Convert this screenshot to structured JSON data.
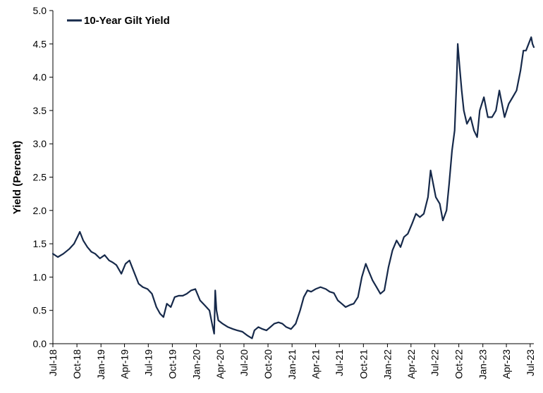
{
  "chart_data": {
    "type": "line",
    "title": "",
    "xlabel": "",
    "ylabel": "Yield (Percent)",
    "ylim": [
      0.0,
      5.0
    ],
    "yticks": [
      "0.0",
      "0.5",
      "1.0",
      "1.5",
      "2.0",
      "2.5",
      "3.0",
      "3.5",
      "4.0",
      "4.5",
      "5.0"
    ],
    "xticks": [
      "Jul-18",
      "Oct-18",
      "Jan-19",
      "Apr-19",
      "Jul-19",
      "Oct-19",
      "Jan-20",
      "Apr-20",
      "Jul-20",
      "Oct-20",
      "Jan-21",
      "Apr-21",
      "Jul-21",
      "Oct-21",
      "Jan-22",
      "Apr-22",
      "Jul-22",
      "Oct-22",
      "Jan-23",
      "Apr-23",
      "Jul-23"
    ],
    "xlim": [
      "2018-07-01",
      "2023-07-15"
    ],
    "grid": false,
    "legend": "top-left",
    "color": "#16294a",
    "series": [
      {
        "name": "10-Year Gilt Yield",
        "x": [
          "2018-07-01",
          "2018-07-20",
          "2018-08-10",
          "2018-09-01",
          "2018-09-20",
          "2018-10-05",
          "2018-10-12",
          "2018-10-25",
          "2018-11-10",
          "2018-11-25",
          "2018-12-10",
          "2018-12-28",
          "2019-01-15",
          "2019-02-01",
          "2019-02-15",
          "2019-03-01",
          "2019-03-20",
          "2019-04-05",
          "2019-04-20",
          "2019-05-10",
          "2019-05-25",
          "2019-06-10",
          "2019-06-28",
          "2019-07-15",
          "2019-08-01",
          "2019-08-15",
          "2019-08-28",
          "2019-09-10",
          "2019-09-25",
          "2019-10-10",
          "2019-10-25",
          "2019-11-10",
          "2019-11-25",
          "2019-12-12",
          "2019-12-28",
          "2020-01-15",
          "2020-02-01",
          "2020-02-20",
          "2020-03-01",
          "2020-03-09",
          "2020-03-13",
          "2020-03-18",
          "2020-03-25",
          "2020-04-10",
          "2020-05-01",
          "2020-05-20",
          "2020-06-05",
          "2020-06-25",
          "2020-07-15",
          "2020-08-01",
          "2020-08-10",
          "2020-08-25",
          "2020-09-10",
          "2020-09-25",
          "2020-10-10",
          "2020-10-25",
          "2020-11-10",
          "2020-11-25",
          "2020-12-10",
          "2020-12-28",
          "2021-01-15",
          "2021-02-01",
          "2021-02-15",
          "2021-03-01",
          "2021-03-15",
          "2021-04-01",
          "2021-04-20",
          "2021-05-10",
          "2021-05-25",
          "2021-06-10",
          "2021-06-25",
          "2021-07-10",
          "2021-07-25",
          "2021-08-10",
          "2021-08-25",
          "2021-09-10",
          "2021-09-25",
          "2021-10-10",
          "2021-10-20",
          "2021-11-05",
          "2021-11-20",
          "2021-12-05",
          "2021-12-20",
          "2022-01-05",
          "2022-01-20",
          "2022-02-05",
          "2022-02-20",
          "2022-03-05",
          "2022-03-20",
          "2022-04-05",
          "2022-04-20",
          "2022-05-05",
          "2022-05-20",
          "2022-06-05",
          "2022-06-15",
          "2022-06-25",
          "2022-07-05",
          "2022-07-20",
          "2022-08-01",
          "2022-08-15",
          "2022-08-25",
          "2022-09-05",
          "2022-09-15",
          "2022-09-23",
          "2022-09-27",
          "2022-10-03",
          "2022-10-12",
          "2022-10-20",
          "2022-11-01",
          "2022-11-15",
          "2022-11-28",
          "2022-12-10",
          "2022-12-20",
          "2023-01-05",
          "2023-01-20",
          "2023-02-05",
          "2023-02-20",
          "2023-03-05",
          "2023-03-15",
          "2023-03-25",
          "2023-04-10",
          "2023-04-25",
          "2023-05-10",
          "2023-05-25",
          "2023-06-05",
          "2023-06-15",
          "2023-06-25",
          "2023-07-05",
          "2023-07-10",
          "2023-07-15"
        ],
        "y": [
          1.35,
          1.3,
          1.35,
          1.42,
          1.5,
          1.62,
          1.68,
          1.55,
          1.45,
          1.38,
          1.35,
          1.28,
          1.33,
          1.25,
          1.22,
          1.18,
          1.05,
          1.2,
          1.25,
          1.05,
          0.9,
          0.85,
          0.82,
          0.75,
          0.55,
          0.45,
          0.4,
          0.6,
          0.55,
          0.7,
          0.72,
          0.72,
          0.75,
          0.8,
          0.82,
          0.65,
          0.58,
          0.5,
          0.3,
          0.15,
          0.8,
          0.5,
          0.35,
          0.3,
          0.25,
          0.22,
          0.2,
          0.18,
          0.12,
          0.08,
          0.2,
          0.25,
          0.22,
          0.2,
          0.25,
          0.3,
          0.32,
          0.3,
          0.25,
          0.22,
          0.3,
          0.5,
          0.7,
          0.8,
          0.78,
          0.82,
          0.85,
          0.82,
          0.78,
          0.76,
          0.65,
          0.6,
          0.55,
          0.58,
          0.6,
          0.7,
          1.0,
          1.2,
          1.1,
          0.95,
          0.85,
          0.75,
          0.8,
          1.15,
          1.4,
          1.55,
          1.45,
          1.6,
          1.65,
          1.8,
          1.95,
          1.9,
          1.95,
          2.2,
          2.6,
          2.4,
          2.2,
          2.1,
          1.85,
          2.0,
          2.4,
          2.9,
          3.2,
          4.0,
          4.5,
          4.2,
          3.8,
          3.5,
          3.3,
          3.4,
          3.2,
          3.1,
          3.5,
          3.7,
          3.4,
          3.4,
          3.5,
          3.8,
          3.6,
          3.4,
          3.6,
          3.7,
          3.8,
          4.1,
          4.4,
          4.4,
          4.5,
          4.6,
          4.5,
          4.45
        ]
      }
    ]
  }
}
